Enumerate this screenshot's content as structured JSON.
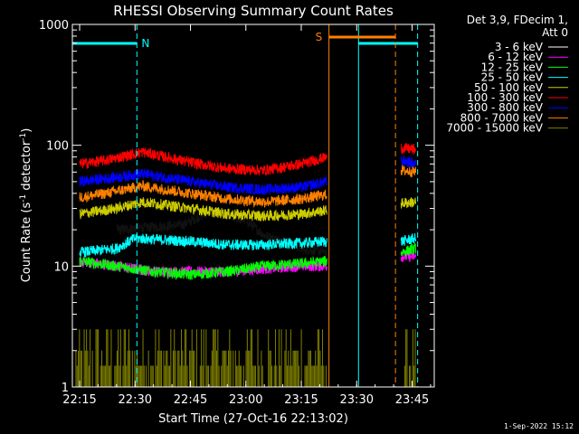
{
  "footer_timestamp": "1-Sep-2022 15:12",
  "chart_data": {
    "type": "line",
    "title": "RHESSI Observing Summary Count Rates",
    "xlabel": "Start Time (27-Oct-16 22:13:02)",
    "ylabel_main": "Count Rate (s",
    "ylabel_sup1": "-1",
    "ylabel_mid": " detector",
    "ylabel_sup2": "-1",
    "ylabel_end": ")",
    "y_scale": "log",
    "ylim": [
      1,
      1000
    ],
    "xlim": [
      "22:13:02",
      "23:51:00"
    ],
    "x_ticks": [
      "22:15",
      "22:30",
      "22:45",
      "23:00",
      "23:15",
      "23:30",
      "23:45"
    ],
    "y_ticks": [
      "1",
      "10",
      "100",
      "1000"
    ],
    "legend": {
      "position": "top-right-outside",
      "header_line1": "Det 3,9, FDecim 1,",
      "header_line2": "Att 0"
    },
    "series": [
      {
        "name": "3 - 6 keV",
        "color": "#000000",
        "segments": [
          [
            [
              "22:25",
              20
            ],
            [
              "22:43",
              22
            ],
            [
              "22:50",
              28
            ],
            [
              "23:00",
              24
            ],
            [
              "23:05",
              18
            ],
            [
              "23:10",
              16
            ],
            [
              "23:15",
              14
            ],
            [
              "23:22",
              13
            ]
          ]
        ]
      },
      {
        "name": "6 - 12 keV",
        "color": "#ff00ff",
        "segments": [
          [
            [
              "22:15",
              11
            ],
            [
              "22:25",
              10
            ],
            [
              "22:35",
              9
            ],
            [
              "22:45",
              9
            ],
            [
              "22:55",
              9
            ],
            [
              "23:05",
              9.5
            ],
            [
              "23:15",
              10
            ],
            [
              "23:22",
              10
            ]
          ],
          [
            [
              "23:42",
              12
            ],
            [
              "23:46",
              12
            ]
          ]
        ]
      },
      {
        "name": "12 - 25 keV",
        "color": "#00ff00",
        "segments": [
          [
            [
              "22:15",
              11
            ],
            [
              "22:25",
              10
            ],
            [
              "22:35",
              9
            ],
            [
              "22:45",
              8.5
            ],
            [
              "22:55",
              9
            ],
            [
              "23:05",
              10
            ],
            [
              "23:15",
              10.5
            ],
            [
              "23:22",
              11
            ]
          ],
          [
            [
              "23:42",
              13
            ],
            [
              "23:46",
              14
            ]
          ]
        ]
      },
      {
        "name": "25 - 50 keV",
        "color": "#00ffff",
        "segments": [
          [
            [
              "22:15",
              13
            ],
            [
              "22:25",
              14
            ],
            [
              "22:30",
              17
            ],
            [
              "22:45",
              16
            ],
            [
              "22:55",
              15
            ],
            [
              "23:05",
              15
            ],
            [
              "23:15",
              15.5
            ],
            [
              "23:22",
              16
            ]
          ],
          [
            [
              "23:42",
              16
            ],
            [
              "23:46",
              17
            ]
          ]
        ]
      },
      {
        "name": "50 - 100 keV",
        "color": "#cccc00",
        "segments": [
          [
            [
              "22:15",
              27
            ],
            [
              "22:25",
              30
            ],
            [
              "22:32",
              34
            ],
            [
              "22:45",
              30
            ],
            [
              "22:55",
              27
            ],
            [
              "23:05",
              26
            ],
            [
              "23:15",
              27
            ],
            [
              "23:22",
              29
            ]
          ],
          [
            [
              "23:42",
              33
            ],
            [
              "23:46",
              34
            ]
          ]
        ]
      },
      {
        "name": "100 - 300 keV",
        "color": "#ff0000",
        "segments": [
          [
            [
              "22:15",
              70
            ],
            [
              "22:22",
              75
            ],
            [
              "22:32",
              88
            ],
            [
              "22:45",
              72
            ],
            [
              "22:55",
              64
            ],
            [
              "23:05",
              62
            ],
            [
              "23:15",
              70
            ],
            [
              "23:22",
              80
            ]
          ],
          [
            [
              "23:42",
              95
            ],
            [
              "23:46",
              92
            ]
          ]
        ]
      },
      {
        "name": "300 - 800 keV",
        "color": "#0000ff",
        "segments": [
          [
            [
              "22:15",
              50
            ],
            [
              "22:22",
              53
            ],
            [
              "22:32",
              58
            ],
            [
              "22:45",
              50
            ],
            [
              "22:55",
              45
            ],
            [
              "23:05",
              43
            ],
            [
              "23:15",
              45
            ],
            [
              "23:22",
              50
            ]
          ],
          [
            [
              "23:42",
              75
            ],
            [
              "23:46",
              70
            ]
          ]
        ]
      },
      {
        "name": "800 - 7000 keV",
        "color": "#ff8000",
        "segments": [
          [
            [
              "22:15",
              37
            ],
            [
              "22:22",
              40
            ],
            [
              "22:32",
              46
            ],
            [
              "22:45",
              40
            ],
            [
              "22:55",
              36
            ],
            [
              "23:05",
              34
            ],
            [
              "23:15",
              36
            ],
            [
              "23:22",
              39
            ]
          ],
          [
            [
              "23:42",
              62
            ],
            [
              "23:46",
              60
            ]
          ]
        ]
      },
      {
        "name": "7000 - 15000 keV",
        "color": "#808000",
        "segments": []
      }
    ],
    "atten_band": {
      "color": "#808000",
      "ranges": [
        [
          "22:14",
          "22:33"
        ],
        [
          "22:33",
          "23:22"
        ],
        [
          "23:43",
          "23:46"
        ]
      ],
      "levels": [
        1,
        1.5,
        2,
        3
      ]
    },
    "night_intervals": {
      "color": "#00ffff",
      "label": "N",
      "intervals": [
        [
          "22:13:02",
          "22:30:30"
        ],
        [
          "23:30:30",
          "23:46:30"
        ]
      ]
    },
    "saa_intervals": {
      "color": "#ff8000",
      "label": "S",
      "intervals": [
        [
          "23:22:30",
          "23:40:30"
        ]
      ]
    }
  }
}
